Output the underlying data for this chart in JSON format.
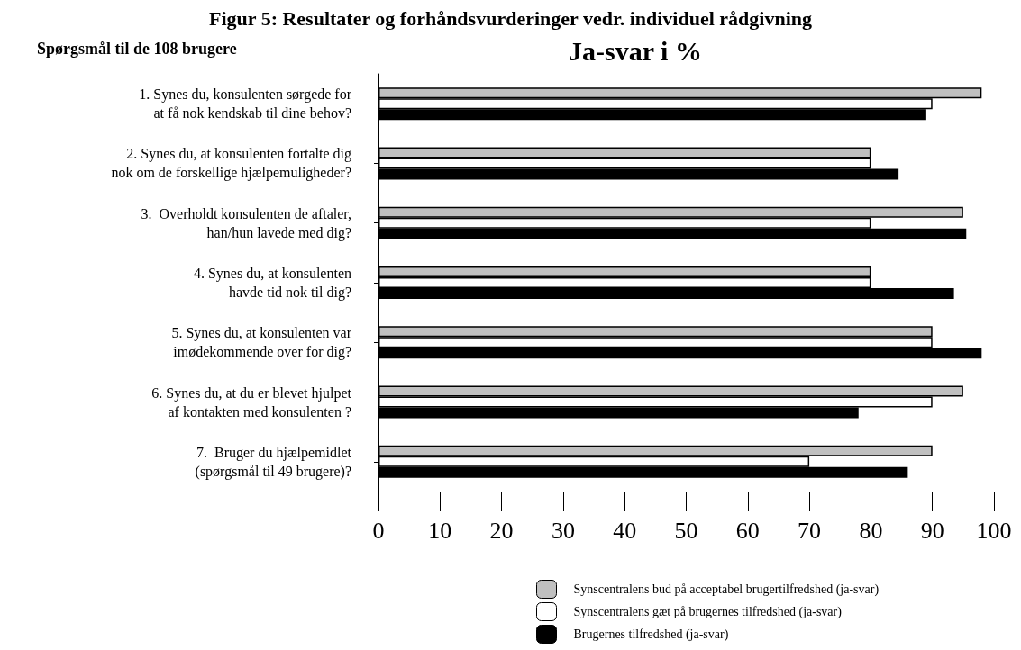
{
  "chart_data": {
    "type": "bar",
    "orientation": "horizontal",
    "title": "Figur 5: Resultater og forhåndsvurderinger vedr. individuel rådgivning",
    "xlabel": "Ja-svar i %",
    "ylabel": "Spørgsmål til de 108 brugere",
    "categories": [
      "1. Synes du, konsulenten sørgede for\nat få nok kendskab til dine behov?",
      "2. Synes du, at konsulenten fortalte dig\nnok om de forskellige hjælpemuligheder?",
      "3.  Overholdt konsulenten de aftaler,\nhan/hun lavede med dig?",
      "4. Synes du, at konsulenten\nhavde tid nok til dig?",
      "5. Synes du, at konsulenten var\nimødekommende over for dig?",
      "6. Synes du, at du er blevet hjulpet\naf kontakten med konsulenten ?",
      "7.  Bruger du hjælpemidlet\n(spørgsmål til 49 brugere)?"
    ],
    "series": [
      {
        "name": "Synscentralens bud på acceptabel brugertilfredshed (ja-svar)",
        "color": "#c0c0c0",
        "values": [
          98,
          80,
          95,
          80,
          90,
          95,
          90
        ]
      },
      {
        "name": "Synscentralens gæt på brugernes tilfredshed (ja-svar)",
        "color": "#ffffff",
        "values": [
          90,
          80,
          80,
          80,
          90,
          90,
          70
        ]
      },
      {
        "name": "Brugernes tilfredshed (ja-svar)",
        "color": "#000000",
        "values": [
          89,
          84.5,
          95.5,
          93.5,
          98,
          78,
          86
        ]
      }
    ],
    "xlim": [
      0,
      100
    ],
    "xticks": [
      0,
      10,
      20,
      30,
      40,
      50,
      60,
      70,
      80,
      90,
      100
    ],
    "grid": false,
    "legend": "bottom right"
  }
}
